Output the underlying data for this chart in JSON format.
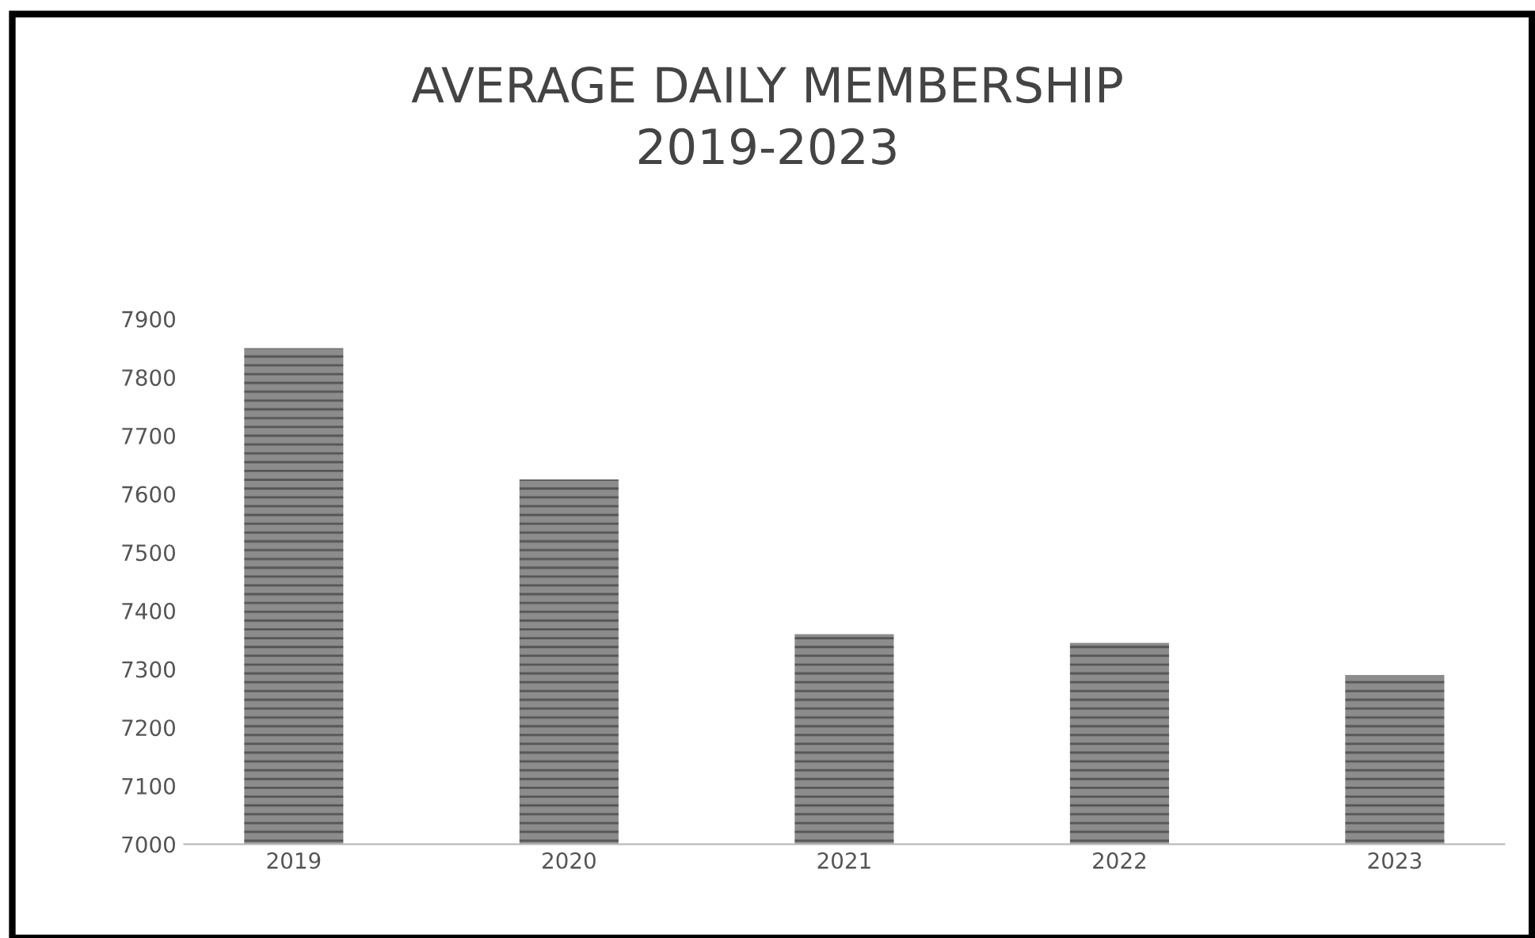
{
  "chart_data": {
    "type": "bar",
    "title": "AVERAGE DAILY MEMBERSHIP\n2019-2023",
    "categories": [
      "2019",
      "2020",
      "2021",
      "2022",
      "2023"
    ],
    "values": [
      7850,
      7625,
      7360,
      7345,
      7290
    ],
    "color": "#8c8c8c",
    "ylim": [
      7000,
      7900
    ],
    "yticks": [
      7000,
      7100,
      7200,
      7300,
      7400,
      7500,
      7600,
      7700,
      7800,
      7900
    ],
    "grid": false
  }
}
